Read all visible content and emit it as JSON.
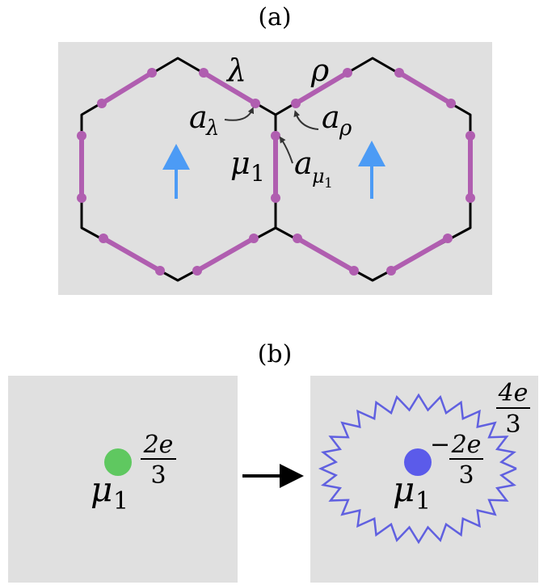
{
  "panel_a": {
    "caption": "(a)",
    "label_lambda": "λ",
    "label_rho": "ρ",
    "label_a": "a",
    "sub_lambda": "λ",
    "sub_rho": "ρ",
    "label_mu": "μ",
    "sub_mu": "1",
    "label_a_mu_sub_mu": "μ",
    "label_a_mu_sub_1": "1"
  },
  "panel_b": {
    "caption": "(b)",
    "left_charge_num": "2e",
    "left_charge_den": "3",
    "left_particle_label": "μ",
    "left_particle_sub": "1",
    "right_minus": "−",
    "right_charge_num": "2e",
    "right_charge_den": "3",
    "right_particle_label": "μ",
    "right_particle_sub": "1",
    "ring_charge_num": "4e",
    "ring_charge_den": "3"
  },
  "colors": {
    "panel_bg": "#e0e0e0",
    "string": "#b05eb0",
    "lattice": "#000000",
    "arrow_blue": "#4c9bf5",
    "particle_green": "#5fc860",
    "particle_blue": "#5b5bea",
    "ring": "#6060e0"
  }
}
